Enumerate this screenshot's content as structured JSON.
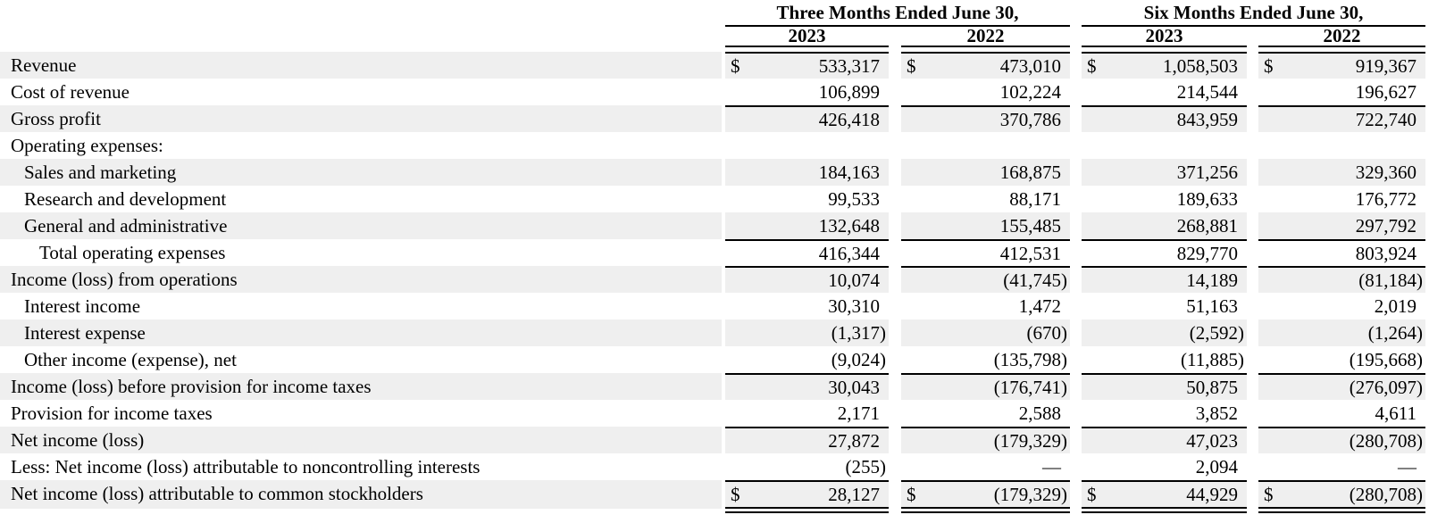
{
  "table": {
    "colors": {
      "shade": "#efefef",
      "rule": "#000000",
      "text": "#000000"
    },
    "col_groups": [
      {
        "label": "Three Months Ended June 30,",
        "years": [
          "2023",
          "2022"
        ]
      },
      {
        "label": "Six Months Ended June 30,",
        "years": [
          "2023",
          "2022"
        ]
      }
    ],
    "rows": [
      {
        "label": "Revenue",
        "indent": 0,
        "dollar": "$",
        "values": [
          "533,317",
          "473,010",
          "1,058,503",
          "919,367"
        ]
      },
      {
        "label": "Cost of revenue",
        "indent": 0,
        "values": [
          "106,899",
          "102,224",
          "214,544",
          "196,627"
        ]
      },
      {
        "label": "Gross profit",
        "indent": 0,
        "values": [
          "426,418",
          "370,786",
          "843,959",
          "722,740"
        ]
      },
      {
        "label": "Operating expenses:",
        "indent": 0,
        "values": [
          "",
          "",
          "",
          ""
        ]
      },
      {
        "label": "Sales and marketing",
        "indent": 1,
        "values": [
          "184,163",
          "168,875",
          "371,256",
          "329,360"
        ]
      },
      {
        "label": "Research and development",
        "indent": 1,
        "values": [
          "99,533",
          "88,171",
          "189,633",
          "176,772"
        ]
      },
      {
        "label": "General and administrative",
        "indent": 1,
        "values": [
          "132,648",
          "155,485",
          "268,881",
          "297,792"
        ]
      },
      {
        "label": "Total operating expenses",
        "indent": 2,
        "values": [
          "416,344",
          "412,531",
          "829,770",
          "803,924"
        ]
      },
      {
        "label": "Income (loss) from operations",
        "indent": 0,
        "values": [
          "10,074",
          "(41,745)",
          "14,189",
          "(81,184)"
        ]
      },
      {
        "label": "Interest income",
        "indent": 1,
        "values": [
          "30,310",
          "1,472",
          "51,163",
          "2,019"
        ]
      },
      {
        "label": "Interest expense",
        "indent": 1,
        "values": [
          "(1,317)",
          "(670)",
          "(2,592)",
          "(1,264)"
        ]
      },
      {
        "label": "Other income (expense), net",
        "indent": 1,
        "values": [
          "(9,024)",
          "(135,798)",
          "(11,885)",
          "(195,668)"
        ]
      },
      {
        "label": "Income (loss) before provision for income taxes",
        "indent": 0,
        "values": [
          "30,043",
          "(176,741)",
          "50,875",
          "(276,097)"
        ]
      },
      {
        "label": "Provision for income taxes",
        "indent": 0,
        "values": [
          "2,171",
          "2,588",
          "3,852",
          "4,611"
        ]
      },
      {
        "label": "Net income (loss)",
        "indent": 0,
        "values": [
          "27,872",
          "(179,329)",
          "47,023",
          "(280,708)"
        ]
      },
      {
        "label": "Less: Net income (loss) attributable to noncontrolling interests",
        "indent": 0,
        "values": [
          "(255)",
          "—",
          "2,094",
          "—"
        ]
      },
      {
        "label": "Net income (loss) attributable to common stockholders",
        "indent": 0,
        "dollar": "$",
        "values": [
          "28,127",
          "(179,329)",
          "44,929",
          "(280,708)"
        ]
      }
    ]
  }
}
